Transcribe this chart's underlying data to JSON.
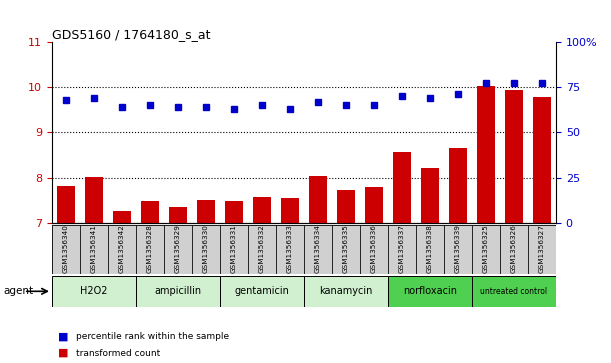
{
  "title": "GDS5160 / 1764180_s_at",
  "samples": [
    "GSM1356340",
    "GSM1356341",
    "GSM1356342",
    "GSM1356328",
    "GSM1356329",
    "GSM1356330",
    "GSM1356331",
    "GSM1356332",
    "GSM1356333",
    "GSM1356334",
    "GSM1356335",
    "GSM1356336",
    "GSM1356337",
    "GSM1356338",
    "GSM1356339",
    "GSM1356325",
    "GSM1356326",
    "GSM1356327"
  ],
  "bar_values": [
    7.82,
    8.03,
    7.26,
    7.48,
    7.35,
    7.52,
    7.49,
    7.58,
    7.56,
    8.04,
    7.73,
    7.8,
    8.58,
    8.22,
    8.65,
    10.02,
    9.93,
    9.79
  ],
  "dot_values": [
    68,
    69,
    64,
    65,
    64,
    64,
    63,
    65,
    63,
    67,
    65,
    65,
    70,
    69,
    71,
    77,
    77,
    77
  ],
  "groups": [
    {
      "label": "H2O2",
      "start": 0,
      "end": 2,
      "color": "#d0f0d0"
    },
    {
      "label": "ampicillin",
      "start": 3,
      "end": 5,
      "color": "#d0f0d0"
    },
    {
      "label": "gentamicin",
      "start": 6,
      "end": 8,
      "color": "#d0f0d0"
    },
    {
      "label": "kanamycin",
      "start": 9,
      "end": 11,
      "color": "#d0f0d0"
    },
    {
      "label": "norfloxacin",
      "start": 12,
      "end": 14,
      "color": "#50d050"
    },
    {
      "label": "untreated control",
      "start": 15,
      "end": 17,
      "color": "#50d050"
    }
  ],
  "bar_color": "#cc0000",
  "dot_color": "#0000cc",
  "ylim_left": [
    7,
    11
  ],
  "ylim_right": [
    0,
    100
  ],
  "yticks_left": [
    7,
    8,
    9,
    10,
    11
  ],
  "yticks_right": [
    0,
    25,
    50,
    75,
    100
  ],
  "yticklabels_right": [
    "0",
    "25",
    "50",
    "75",
    "100%"
  ],
  "grid_values": [
    8,
    9,
    10
  ],
  "agent_label": "agent",
  "legend_bar": "transformed count",
  "legend_dot": "percentile rank within the sample"
}
